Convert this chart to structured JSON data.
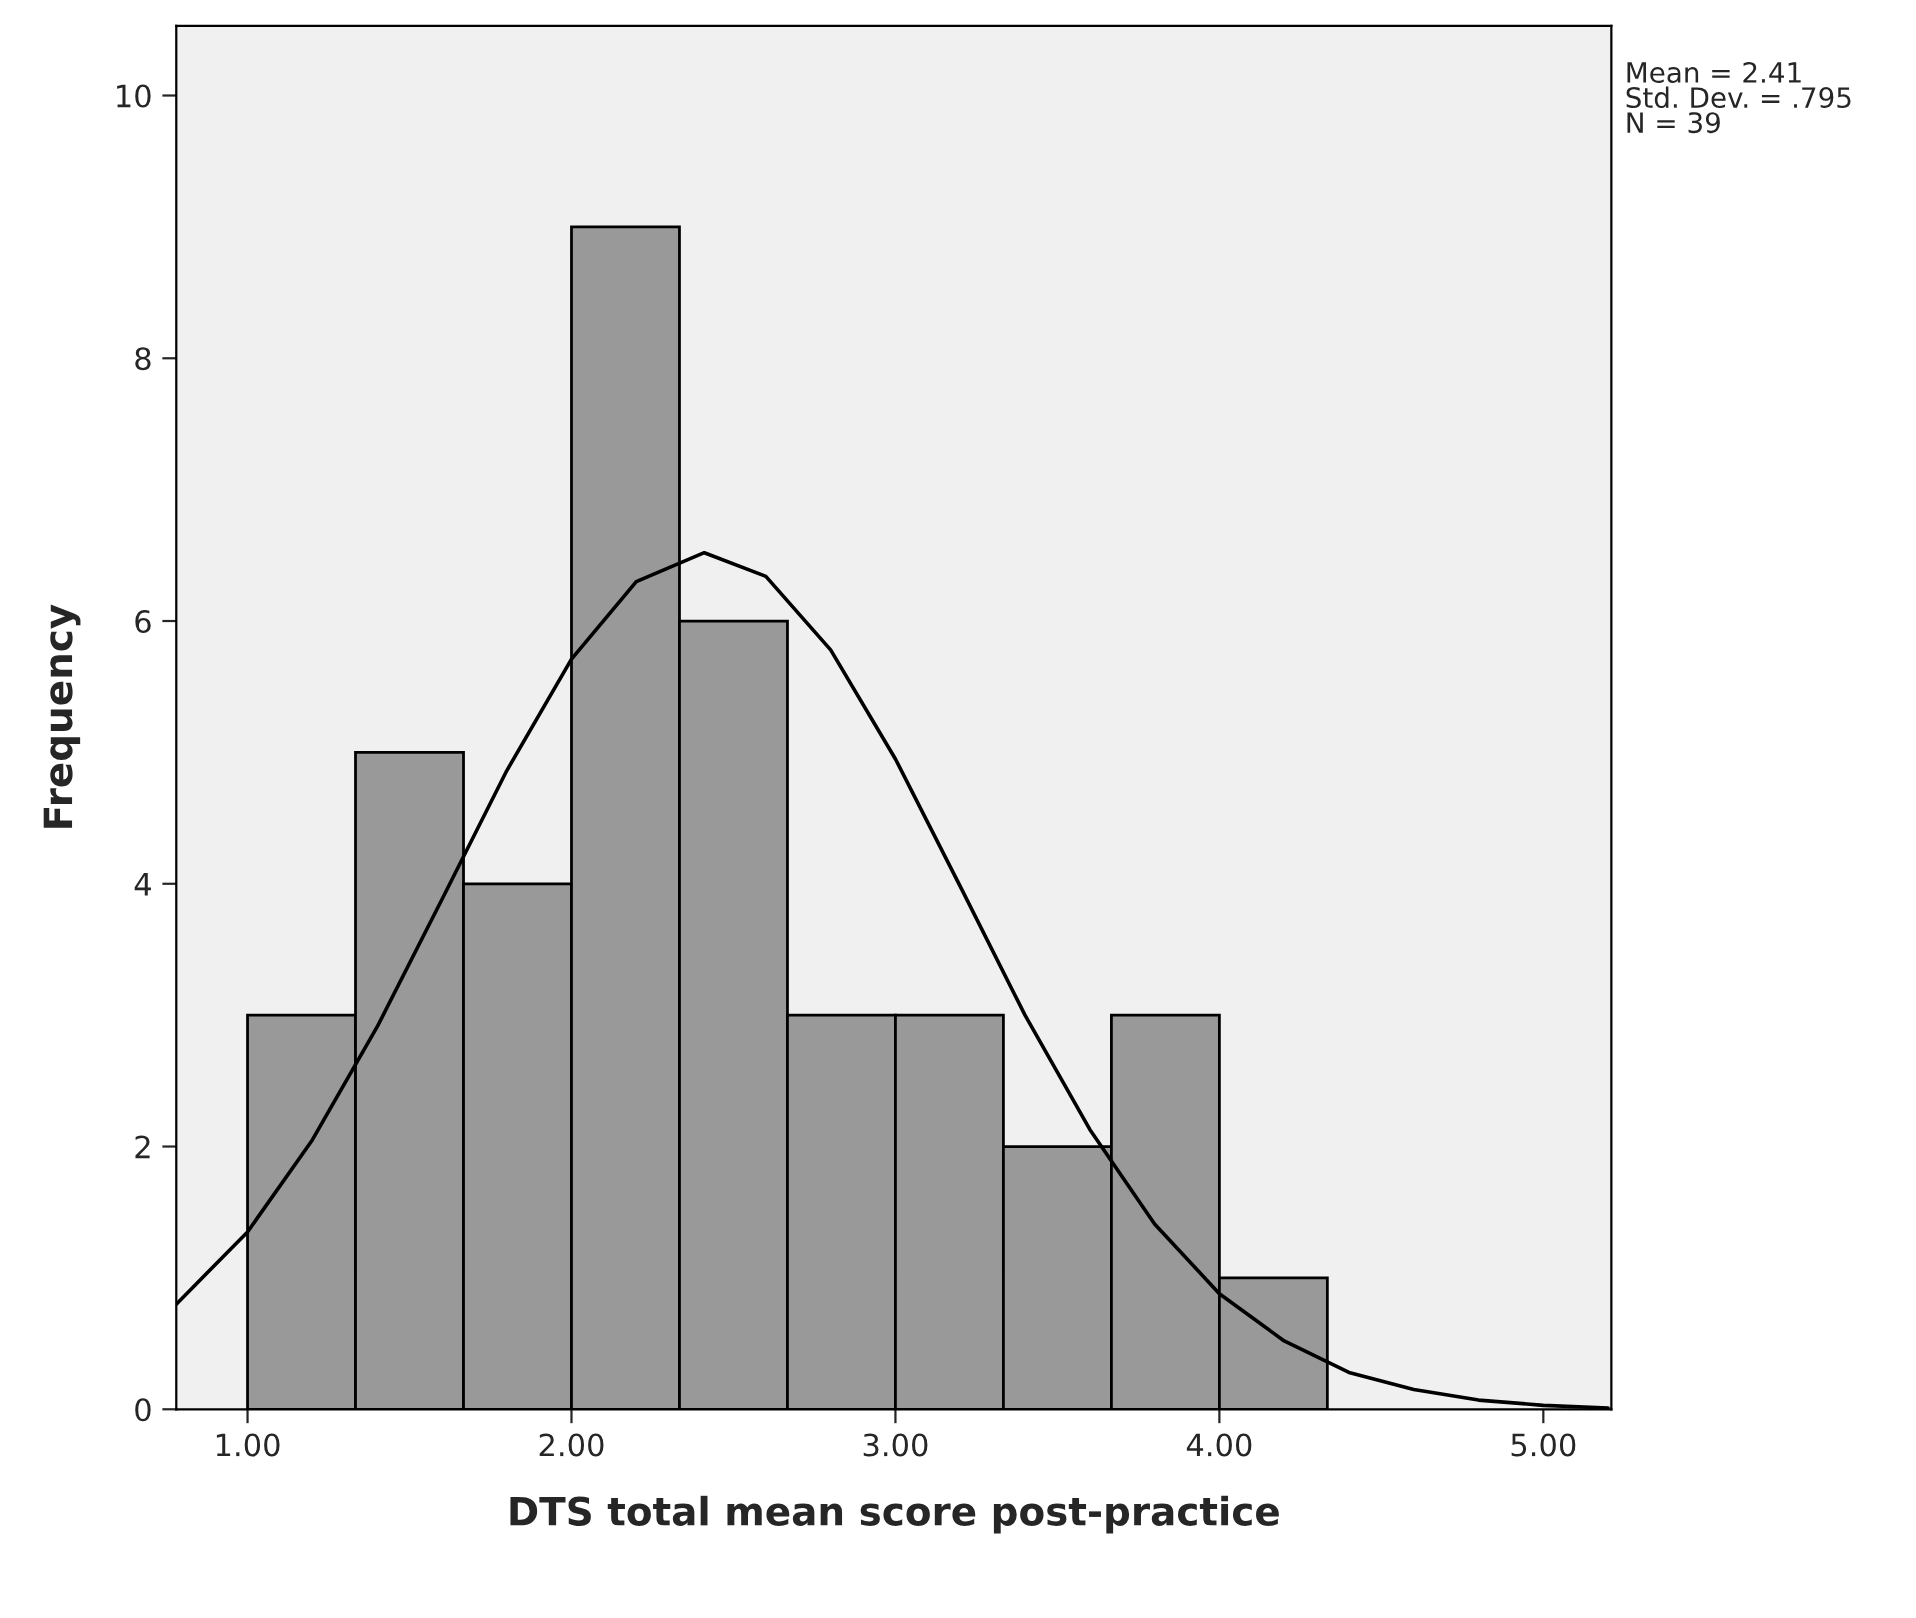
{
  "chart_data": {
    "type": "histogram",
    "xlabel": "DTS total mean score post-practice",
    "ylabel": "Frequency",
    "bins": [
      1.0,
      1.3333,
      1.6667,
      2.0,
      2.3333,
      2.6667,
      3.0,
      3.3333,
      3.6667,
      4.0,
      4.3333
    ],
    "values": [
      3,
      5,
      4,
      9,
      6,
      3,
      3,
      2,
      3,
      1
    ],
    "color": "#999999",
    "series": [
      {
        "type": "line",
        "color": "#000000",
        "x": [
          0.78,
          1.0,
          1.2,
          1.4,
          1.6,
          1.8,
          2.0,
          2.2,
          2.41,
          2.6,
          2.8,
          3.0,
          3.2,
          3.4,
          3.6,
          3.8,
          4.0,
          4.2,
          4.4,
          4.6,
          4.8,
          5.0,
          5.2
        ],
        "values": [
          0.8,
          1.35,
          2.05,
          2.91,
          3.88,
          4.86,
          5.71,
          6.3,
          6.52,
          6.34,
          5.78,
          4.95,
          3.98,
          3.0,
          2.13,
          1.41,
          0.88,
          0.52,
          0.28,
          0.15,
          0.07,
          0.03,
          0.01
        ]
      }
    ],
    "xlim": [
      0.78,
      5.21
    ],
    "ylim": [
      0,
      10.53
    ],
    "xticks": [
      {
        "value": 1,
        "label": "1.00"
      },
      {
        "value": 2,
        "label": "2.00"
      },
      {
        "value": 3,
        "label": "3.00"
      },
      {
        "value": 4,
        "label": "4.00"
      },
      {
        "value": 5,
        "label": "5.00"
      }
    ],
    "yticks": [
      0,
      2,
      4,
      6,
      8,
      10
    ],
    "grid": false,
    "annotations": [
      "Mean = 2.41",
      "Std. Dev. = .795",
      "N = 39"
    ]
  }
}
